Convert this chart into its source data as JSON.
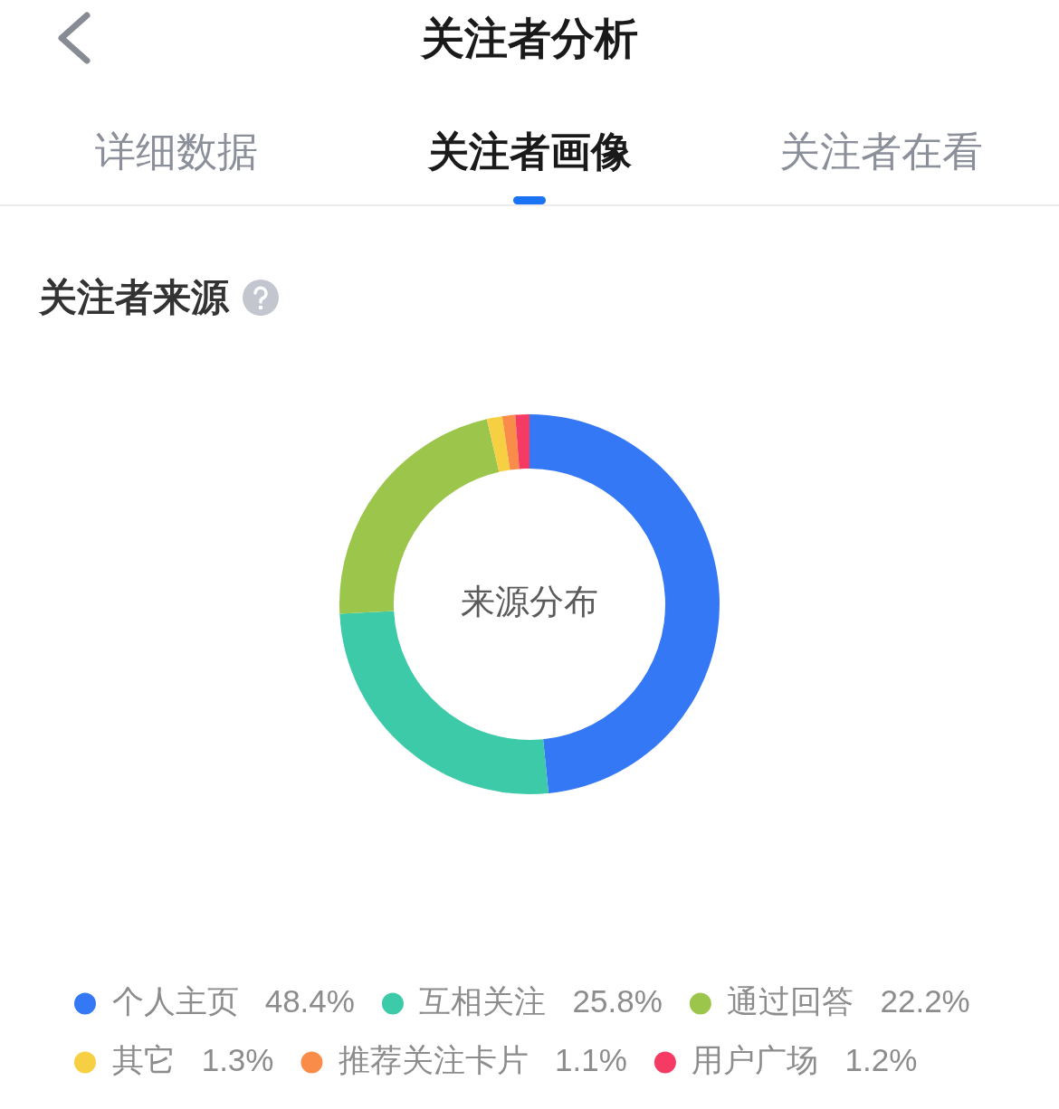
{
  "chart_data": {
    "type": "donut",
    "title": "关注者来源",
    "categories": [
      "个人主页",
      "互相关注",
      "通过回答",
      "其它",
      "推荐关注卡片",
      "用户广场"
    ],
    "values": [
      48.4,
      25.8,
      22.2,
      1.3,
      1.1,
      1.2
    ],
    "colors": [
      "#3478f6",
      "#3ccaa8",
      "#9bc64b",
      "#f6d042",
      "#fa8c4a",
      "#f53b63"
    ],
    "value_labels": [
      "48.4%",
      "25.8%",
      "22.2%",
      "1.3%",
      "1.1%",
      "1.2%"
    ],
    "legend": "bottom",
    "annotations": [
      "关注者分析",
      "详细数据",
      "关注者画像",
      "关注者在看",
      "来源分布"
    ]
  }
}
